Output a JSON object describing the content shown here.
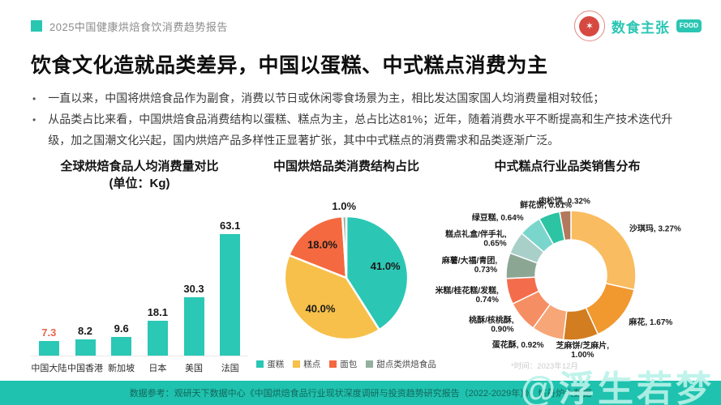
{
  "header": {
    "report_tag": "2025中国健康烘焙食饮消费趋势报告",
    "brand": "数食主张",
    "brand_badge": "FOOD",
    "seal_glyph": "✶",
    "accent_color": "#29C6B2"
  },
  "title": "饮食文化造就品类差异，中国以蛋糕、中式糕点消费为主",
  "bullets": [
    "一直以来，中国将烘焙食品作为副食，消费以节日或休闲零食场景为主，相比发达国家国人均消费量相对较低；",
    "从品类占比来看，中国烘焙食品消费结构以蛋糕、糕点为主，总占比达81%；近年，随着消费水平不断提高和生产技术迭代升级，加之国潮文化兴起，国内烘焙产品多样性正显著扩张，其中中式糕点的消费需求和品类逐渐广泛。"
  ],
  "chart_data": [
    {
      "type": "bar",
      "title": "全球烘焙食品人均消费量对比",
      "subtitle": "(单位：Kg)",
      "categories": [
        "中国大陆",
        "中国香港",
        "新加坡",
        "日本",
        "美国",
        "法国"
      ],
      "values": [
        7.3,
        8.2,
        9.6,
        18.1,
        30.3,
        63.1
      ],
      "ylim": [
        0,
        63.1
      ],
      "bar_color": "#2AC8B5",
      "highlight_index": 0,
      "highlight_color": "#E8654C"
    },
    {
      "type": "pie",
      "title": "中国烘焙品类消费结构占比",
      "labels": [
        "蛋糕",
        "糕点",
        "面包",
        "甜点类烘焙食品"
      ],
      "values": [
        41.0,
        40.0,
        18.0,
        1.0
      ],
      "colors": [
        "#2BC7B4",
        "#F6C04A",
        "#F4693F",
        "#95AF9F"
      ],
      "legend_position": "bottom",
      "start_angle": "top",
      "direction": "clockwise"
    },
    {
      "type": "pie",
      "donut": true,
      "title": "中式糕点行业品类销售分布",
      "labels": [
        "沙琪玛",
        "麻花",
        "芝麻饼/芝麻片",
        "蛋花酥",
        "桃酥/核桃酥",
        "米糕/桂花糕/发糕",
        "麻薯/大福/青团",
        "糕点礼盒/伴手礼",
        "绿豆糕",
        "鲜花饼",
        "肉松饼"
      ],
      "values": [
        3.27,
        1.67,
        1.0,
        0.92,
        0.9,
        0.74,
        0.73,
        0.65,
        0.64,
        0.61,
        0.32
      ],
      "colors": [
        "#F9BC60",
        "#F1982F",
        "#D27D1F",
        "#F7A678",
        "#F68E63",
        "#F36D4D",
        "#8BA794",
        "#A9CFC9",
        "#7AD6CD",
        "#2CC4A2",
        "#B2795C"
      ],
      "start_angle": "top",
      "direction": "clockwise",
      "note": "*时间：2023年12月"
    }
  ],
  "footer": {
    "source": "数据参考：观研天下数据中心《中国烘焙食品行业现状深度调研与投资趋势研究报告（2022-2029年）》、炼丹炉大数据"
  },
  "watermark": "@浮生若梦"
}
